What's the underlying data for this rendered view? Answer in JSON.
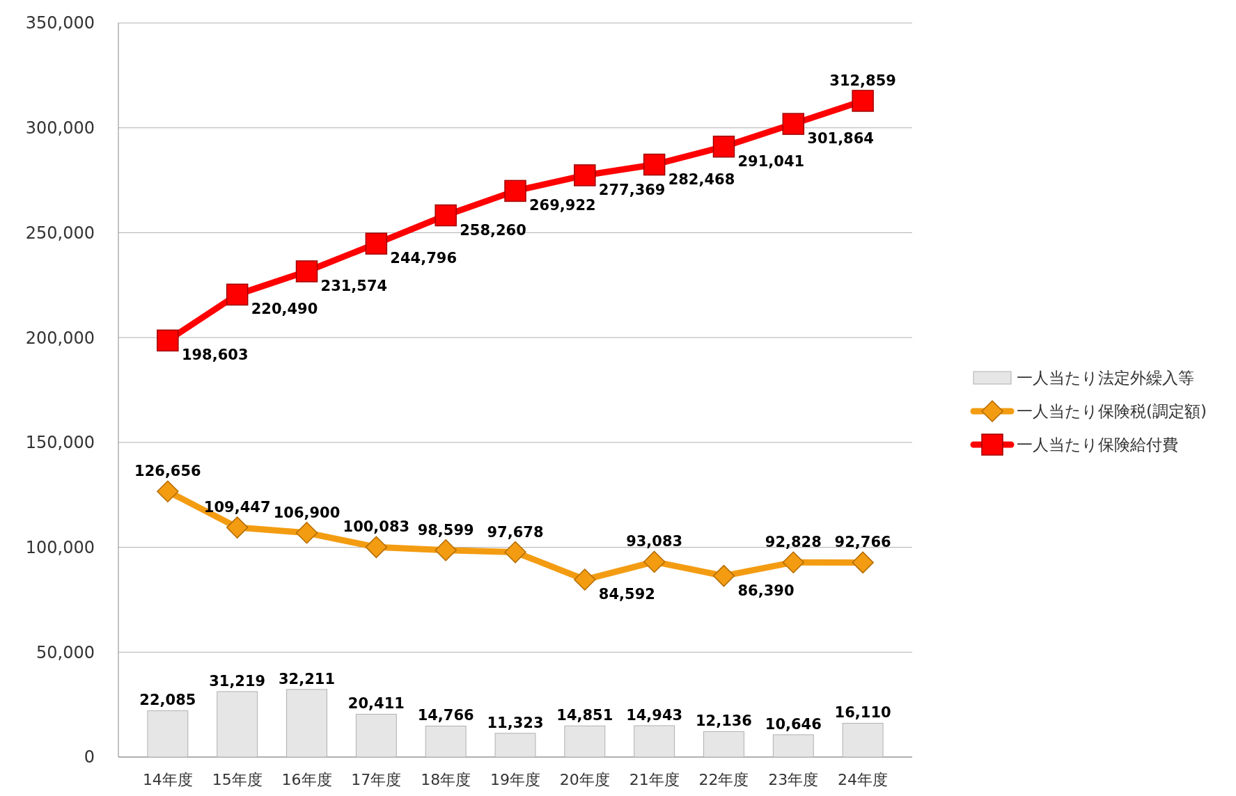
{
  "chart_data": {
    "type": "bar",
    "categories": [
      "14年度",
      "15年度",
      "16年度",
      "17年度",
      "18年度",
      "19年度",
      "20年度",
      "21年度",
      "22年度",
      "23年度",
      "24年度"
    ],
    "series": [
      {
        "name": "一人当たり法定外繰入等",
        "color": "#e6e6e6",
        "values": [
          22085,
          31219,
          32211,
          20411,
          14766,
          11323,
          14851,
          14943,
          12136,
          10646,
          16110
        ],
        "value_labels": [
          "22,085",
          "31,219",
          "32,211",
          "20,411",
          "14,766",
          "11,323",
          "14,851",
          "14,943",
          "12,136",
          "10,646",
          "16,110"
        ]
      },
      {
        "name": "一人当たり保険税(調定額)",
        "type": "line",
        "color": "#f39c12",
        "marker": "diamond",
        "values": [
          126656,
          109447,
          106900,
          100083,
          98599,
          97678,
          84592,
          93083,
          86390,
          92828,
          92766
        ],
        "value_labels": [
          "126,656",
          "109,447",
          "106,900",
          "100,083",
          "98,599",
          "97,678",
          "84,592",
          "93,083",
          "86,390",
          "92,828",
          "92,766"
        ]
      },
      {
        "name": "一人当たり保険給付費",
        "type": "line",
        "color": "#ff0000",
        "marker": "square",
        "values": [
          198603,
          220490,
          231574,
          244796,
          258260,
          269922,
          277369,
          282468,
          291041,
          301864,
          312859
        ],
        "value_labels": [
          "198,603",
          "220,490",
          "231,574",
          "244,796",
          "258,260",
          "269,922",
          "277,369",
          "282,468",
          "291,041",
          "301,864",
          "312,859"
        ]
      }
    ],
    "ylim": [
      0,
      350000
    ],
    "yticks": [
      0,
      {
        "value": 50000,
        "label": "50,000"
      },
      {
        "value": 100000,
        "label": "100,000"
      },
      {
        "value": 150000,
        "label": "150,000"
      },
      {
        "value": 200000,
        "label": "200,000"
      },
      {
        "value": 250000,
        "label": "250,000"
      },
      {
        "value": 300000,
        "label": "300,000"
      },
      {
        "value": 350000,
        "label": "350,000"
      }
    ],
    "grid": "y",
    "legend": "right"
  }
}
